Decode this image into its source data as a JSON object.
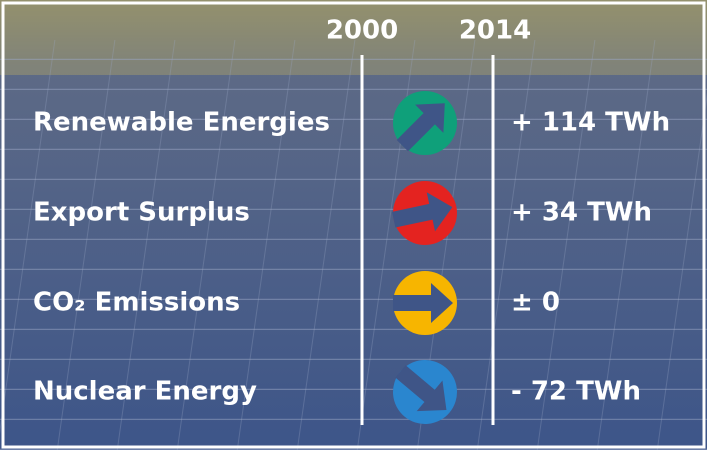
{
  "header": {
    "columns": [
      "2000",
      "2014"
    ]
  },
  "rows": [
    {
      "label": "Renewable Energies",
      "change": "+ 114 TWh"
    },
    {
      "label": "Export Surplus",
      "change": "+ 34 TWh"
    },
    {
      "label": "CO₂ Emissions",
      "change": "± 0"
    },
    {
      "label": "Nuclear Energy",
      "change": "- 72 TWh"
    }
  ]
}
